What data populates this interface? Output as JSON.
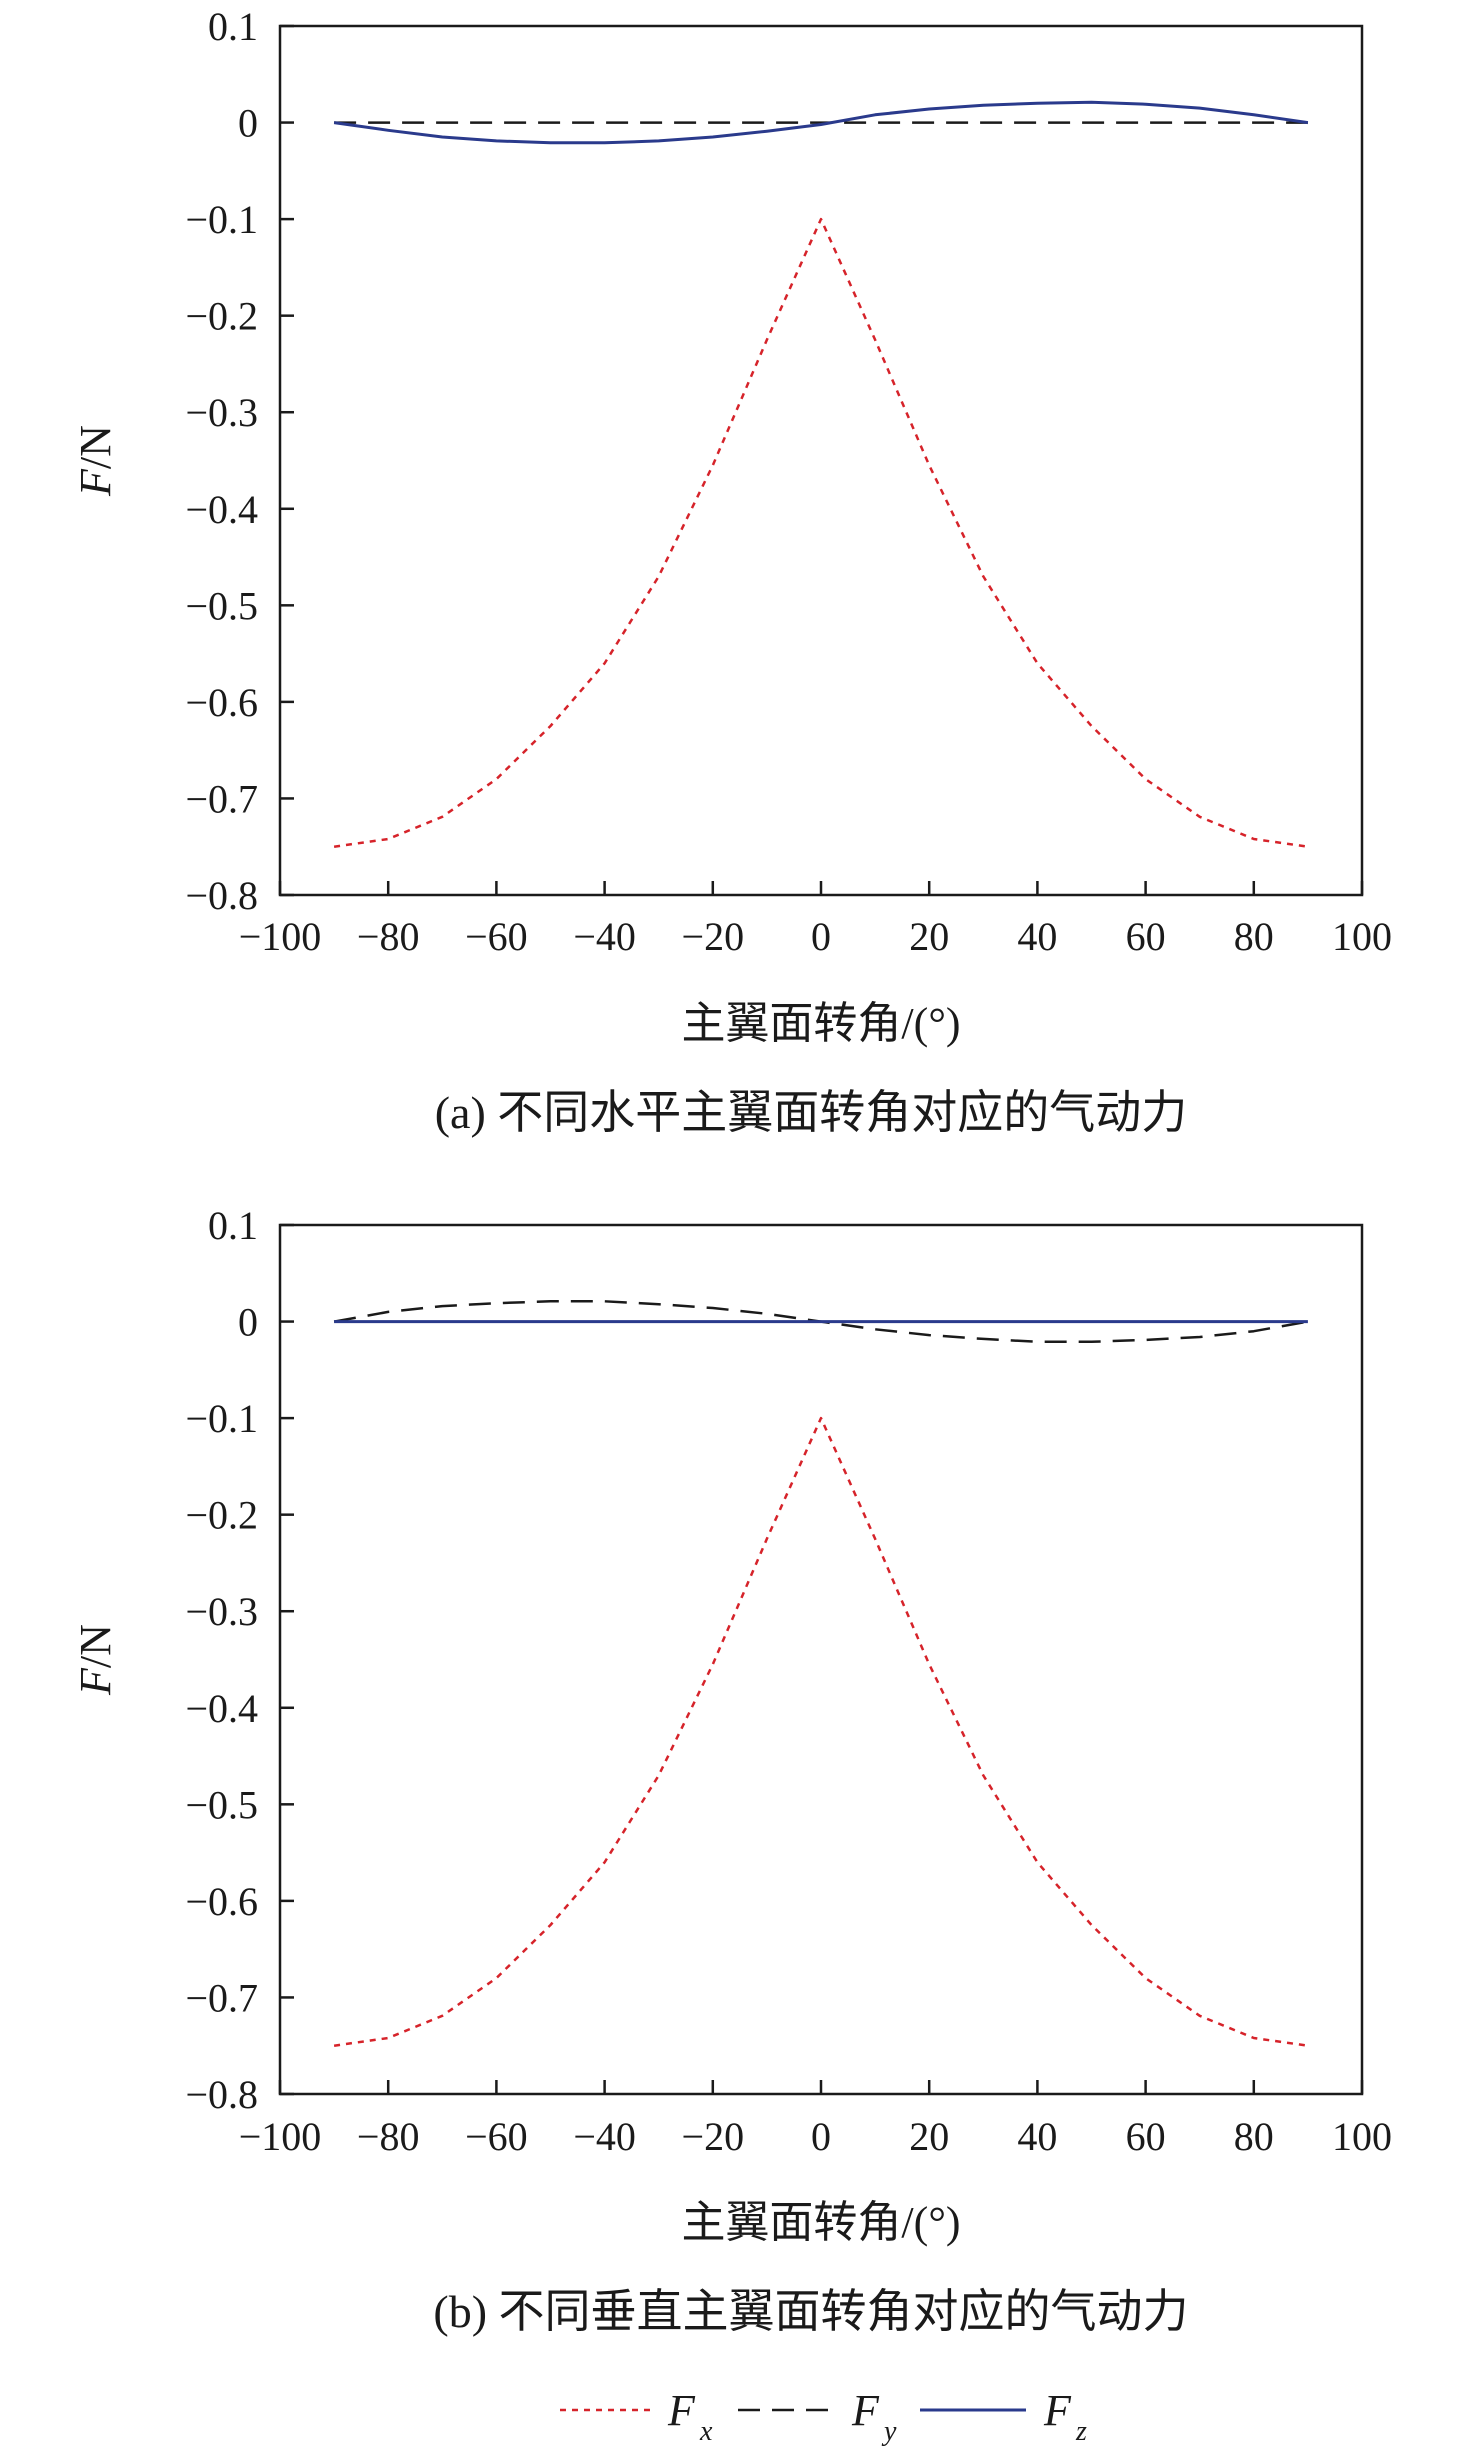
{
  "chart_data": [
    {
      "type": "line",
      "panel": "a",
      "caption": "(a) 不同水平主翼面转角对应的气动力",
      "xlabel": "主翼面转角/(°)",
      "ylabel_main": "F",
      "ylabel_unit": "/N",
      "xlim": [
        -100,
        100
      ],
      "ylim": [
        -0.8,
        0.1
      ],
      "xticks": [
        "−100",
        "−80",
        "−60",
        "−40",
        "−20",
        "0",
        "20",
        "40",
        "60",
        "80",
        "100"
      ],
      "yticks": [
        "0.1",
        "0",
        "−0.1",
        "−0.2",
        "−0.3",
        "−0.4",
        "−0.5",
        "−0.6",
        "−0.7",
        "−0.8"
      ],
      "x": [
        -90,
        -80,
        -70,
        -60,
        -50,
        -40,
        -30,
        -20,
        -10,
        0,
        10,
        20,
        30,
        40,
        50,
        60,
        70,
        80,
        90
      ],
      "series": [
        {
          "name": "Fx",
          "style": "dotted",
          "color": "#d6232a",
          "values": [
            -0.75,
            -0.742,
            -0.719,
            -0.68,
            -0.625,
            -0.56,
            -0.47,
            -0.355,
            -0.225,
            -0.1,
            -0.225,
            -0.355,
            -0.47,
            -0.56,
            -0.625,
            -0.68,
            -0.719,
            -0.742,
            -0.75
          ]
        },
        {
          "name": "Fy",
          "style": "dashed",
          "color": "#1a1a1a",
          "values": [
            0,
            0,
            0,
            0,
            0,
            0,
            0,
            0,
            0,
            0,
            0,
            0,
            0,
            0,
            0,
            0,
            0,
            0,
            0
          ]
        },
        {
          "name": "Fz",
          "style": "solid",
          "color": "#2a3a8c",
          "values": [
            0,
            -0.008,
            -0.015,
            -0.019,
            -0.021,
            -0.021,
            -0.019,
            -0.015,
            -0.009,
            -0.002,
            0.008,
            0.014,
            0.018,
            0.02,
            0.021,
            0.019,
            0.015,
            0.008,
            0
          ]
        }
      ]
    },
    {
      "type": "line",
      "panel": "b",
      "caption": "(b) 不同垂直主翼面转角对应的气动力",
      "xlabel": "主翼面转角/(°)",
      "ylabel_main": "F",
      "ylabel_unit": "/N",
      "xlim": [
        -100,
        100
      ],
      "ylim": [
        -0.8,
        0.1
      ],
      "xticks": [
        "−100",
        "−80",
        "−60",
        "−40",
        "−20",
        "0",
        "20",
        "40",
        "60",
        "80",
        "100"
      ],
      "yticks": [
        "0.1",
        "0",
        "−0.1",
        "−0.2",
        "−0.3",
        "−0.4",
        "−0.5",
        "−0.6",
        "−0.7",
        "−0.8"
      ],
      "x": [
        -90,
        -80,
        -70,
        -60,
        -50,
        -40,
        -30,
        -20,
        -10,
        0,
        10,
        20,
        30,
        40,
        50,
        60,
        70,
        80,
        90
      ],
      "series": [
        {
          "name": "Fx",
          "style": "dotted",
          "color": "#d6232a",
          "values": [
            -0.75,
            -0.742,
            -0.719,
            -0.68,
            -0.625,
            -0.56,
            -0.47,
            -0.355,
            -0.225,
            -0.1,
            -0.225,
            -0.355,
            -0.47,
            -0.56,
            -0.625,
            -0.68,
            -0.719,
            -0.742,
            -0.75
          ]
        },
        {
          "name": "Fy",
          "style": "dashed",
          "color": "#1a1a1a",
          "values": [
            0,
            0.01,
            0.016,
            0.019,
            0.021,
            0.021,
            0.018,
            0.014,
            0.008,
            0,
            -0.008,
            -0.014,
            -0.018,
            -0.021,
            -0.021,
            -0.019,
            -0.016,
            -0.01,
            0
          ]
        },
        {
          "name": "Fz",
          "style": "solid",
          "color": "#2a3a8c",
          "values": [
            0,
            0,
            0,
            0,
            0,
            0,
            0,
            0,
            0,
            0,
            0,
            0,
            0,
            0,
            0,
            0,
            0,
            0,
            0
          ]
        }
      ]
    }
  ],
  "legend": {
    "items": [
      {
        "main": "F",
        "sub": "x",
        "style": "dotted",
        "color": "#d6232a"
      },
      {
        "main": "F",
        "sub": "y",
        "style": "dashed",
        "color": "#1a1a1a"
      },
      {
        "main": "F",
        "sub": "z",
        "style": "solid",
        "color": "#2a3a8c"
      }
    ]
  }
}
